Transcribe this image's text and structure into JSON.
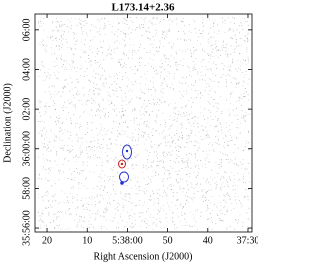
{
  "chart_data": {
    "type": "sky-map",
    "title": "L173.14+2.36",
    "xlabel": "Right Ascension (J2000)",
    "ylabel": "Declination (J2000)",
    "xlim": [
      23,
      -31
    ],
    "xticks": [
      20,
      10,
      {
        "value": 0,
        "label": "5:38:00"
      },
      {
        "value": -10,
        "label": "50"
      },
      {
        "value": -20,
        "label": "40"
      },
      {
        "value": -30,
        "label": "37:30"
      }
    ],
    "ylim": [
      -4.2,
      6.8
    ],
    "yticks": [
      {
        "value": 6,
        "label": "06:00"
      },
      {
        "value": 4,
        "label": "04:00"
      },
      {
        "value": 2,
        "label": "02:00"
      },
      {
        "value": 0,
        "label": "36:00:00"
      },
      {
        "value": -2,
        "label": "58:00"
      },
      {
        "value": -4,
        "label": "35:56:00"
      }
    ]
  }
}
